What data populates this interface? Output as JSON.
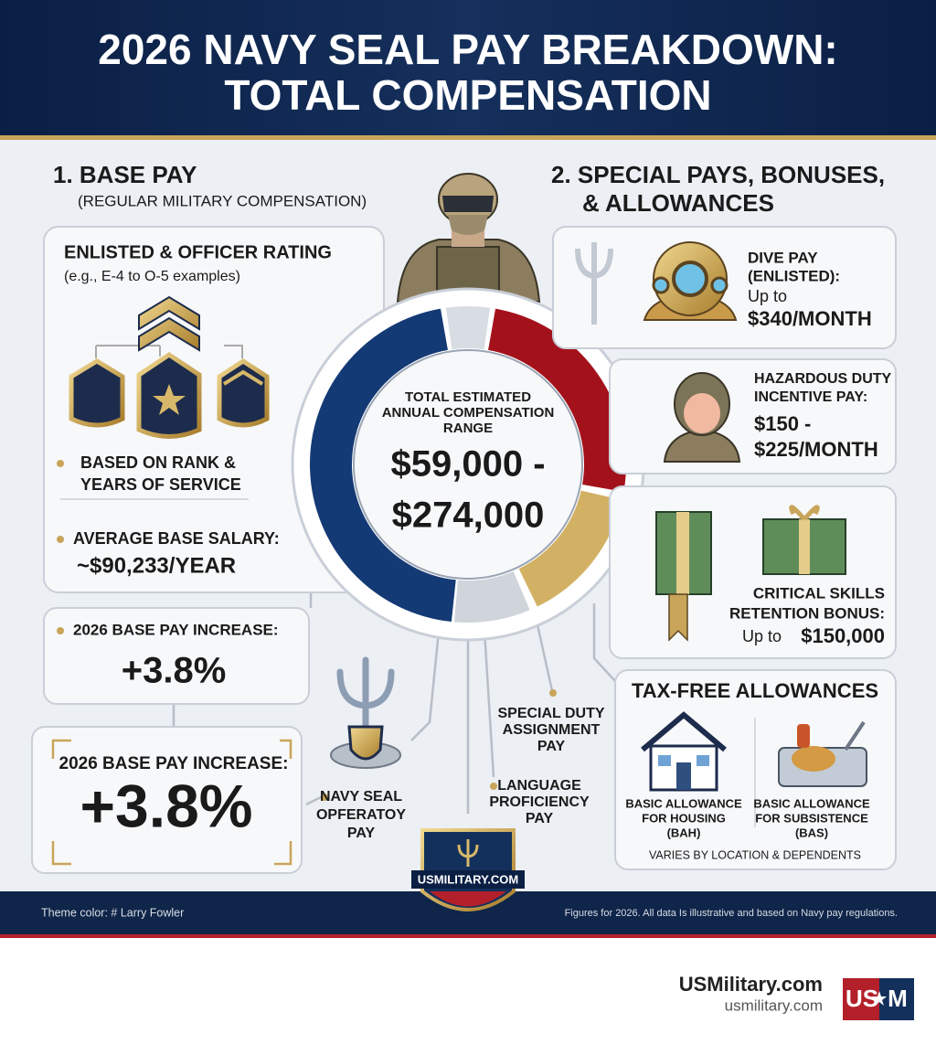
{
  "header": {
    "title_lines": [
      "2026 NAVY SEAL PAY BREAKDOWN:",
      "TOTAL COMPENSATION"
    ]
  },
  "base_pay": {
    "heading": "1. BASE PAY",
    "subheading": "(REGULAR MILITARY COMPENSATION)",
    "rating_card": {
      "title": "ENLISTED & OFFICER RATING",
      "example": "(e.g., E-4 to O-5 examples)",
      "bullet_1_lines": [
        "BASED ON RANK &",
        "YEARS OF SERVICE"
      ],
      "bullet_2_label": "AVERAGE BASE SALARY:",
      "bullet_2_value": "~$90,233/YEAR"
    },
    "increase_cards": [
      {
        "label": "2026 BASE PAY INCREASE:",
        "value": "+3.8%"
      },
      {
        "label": "2026 BASE PAY INCREASE:",
        "value": "+3.8%"
      }
    ]
  },
  "center": {
    "label_lines": [
      "TOTAL ESTIMATED",
      "ANNUAL COMPENSATION",
      "RANGE"
    ],
    "range_lines": [
      "$59,000 -",
      "$274,000"
    ]
  },
  "callouts": [
    {
      "lines": [
        "SPECIAL DUTY",
        "ASSIGNMENT",
        "PAY"
      ]
    },
    {
      "lines": [
        "LANGUAGE",
        "PROFICIENCY",
        "PAY"
      ]
    },
    {
      "lines": [
        "NAVY SEAL",
        "OPFERATOY",
        "PAY"
      ]
    }
  ],
  "special_pays": {
    "heading_lines": [
      "2. SPECIAL PAYS, BONUSES,",
      "& ALLOWANCES"
    ],
    "dive": {
      "lines": [
        "DIVE PAY",
        "(ENLISTED):",
        "Up to"
      ],
      "value": "$340/MONTH"
    },
    "hazardous": {
      "lines": [
        "HAZARDOUS DUTY",
        "INCENTIVE PAY:"
      ],
      "value_lines": [
        "$150 -",
        "$225/MONTH"
      ]
    },
    "bonus": {
      "lines": [
        "CRITICAL SKILLS",
        "RETENTION BONUS:"
      ],
      "prefix": "Up to",
      "value": "$150,000"
    },
    "allowances": {
      "title": "TAX-FREE ALLOWANCES",
      "housing_lines": [
        "BASIC ALLOWANCE",
        "FOR HOUSING",
        "(BAH)"
      ],
      "subsistence_lines": [
        "BASIC ALLOWANCE",
        "FOR SUBSISTENCE",
        "(BAS)"
      ],
      "note": "VARIES BY LOCATION & DEPENDENTS"
    }
  },
  "badge": "USMILITARY.COM",
  "footer": {
    "left": "Theme color: # Larry Fowler",
    "right": "Figures for 2026. All data Is illustrative and based on Navy pay regulations."
  },
  "brand": {
    "name": "USMilitary.com",
    "url": "usmilitary.com",
    "logo_left": "US",
    "logo_right": "M"
  }
}
